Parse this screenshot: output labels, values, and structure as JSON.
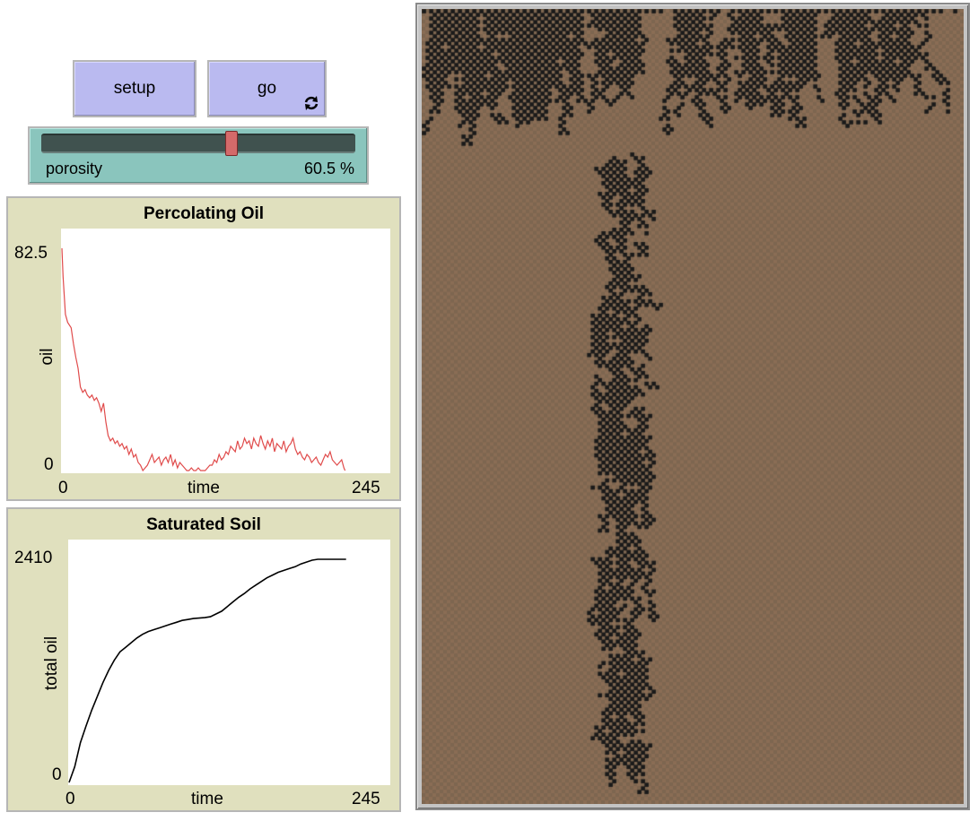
{
  "buttons": {
    "setup": {
      "label": "setup"
    },
    "go": {
      "label": "go",
      "forever": true
    }
  },
  "slider": {
    "label": "porosity",
    "value": 60.5,
    "value_text": "60.5 %",
    "min": 0,
    "max": 100
  },
  "plots": [
    {
      "title": "Percolating Oil",
      "ylabel": "oil",
      "xlabel": "time",
      "chart_data": {
        "type": "line",
        "title": "Percolating Oil",
        "xlabel": "time",
        "ylabel": "oil",
        "xlim": [
          0,
          245
        ],
        "ylim": [
          0,
          82.5
        ],
        "x_tick_labels": [
          "0",
          "245"
        ],
        "y_tick_labels": [
          "0",
          "82.5"
        ],
        "series": [
          {
            "color": "#e04b4b",
            "x": [
              0,
              1,
              3,
              5,
              8,
              10,
              12,
              14,
              16,
              18,
              20,
              22,
              24,
              26,
              28,
              30,
              32,
              34,
              36,
              38,
              40,
              42,
              44,
              46,
              48,
              50,
              52,
              54,
              56,
              58,
              60,
              62,
              64,
              66,
              68,
              70,
              72,
              74,
              76,
              78,
              80,
              82,
              84,
              86,
              88,
              90,
              92,
              94,
              96,
              98,
              100,
              102,
              104,
              106,
              108,
              110,
              112,
              114,
              116,
              118,
              120,
              122,
              124,
              126,
              128,
              130,
              132,
              134,
              136,
              138,
              140,
              142,
              144,
              146,
              148,
              150,
              152,
              154,
              156,
              158,
              160,
              162,
              164,
              166,
              168,
              170,
              172,
              174,
              176,
              178,
              180,
              182,
              184,
              186,
              188,
              190,
              192,
              194,
              196,
              198,
              200,
              202,
              204,
              206,
              208,
              210,
              212,
              214,
              216,
              218,
              220,
              222,
              224,
              226,
              228,
              230,
              232,
              234,
              236,
              238,
              240,
              242,
              244,
              245
            ],
            "y": [
              82.5,
              72,
              58,
              55,
              53,
              47,
              42,
              38,
              31,
              29,
              30,
              28,
              27,
              28,
              26,
              27,
              25,
              22,
              25,
              18,
              13,
              11,
              12,
              10,
              11,
              9,
              10,
              8,
              9,
              6,
              8,
              5,
              6,
              3,
              2,
              0,
              1,
              2,
              4,
              6,
              3,
              4,
              5,
              2,
              4,
              5,
              3,
              6,
              2,
              4,
              1,
              3,
              2,
              1,
              0,
              0,
              1,
              0,
              0,
              1,
              0,
              0,
              0,
              1,
              2,
              2,
              4,
              3,
              6,
              4,
              5,
              7,
              6,
              9,
              8,
              7,
              11,
              8,
              9,
              12,
              10,
              11,
              8,
              12,
              10,
              9,
              13,
              10,
              8,
              11,
              9,
              12,
              7,
              10,
              9,
              8,
              11,
              7,
              9,
              10,
              12,
              8,
              6,
              7,
              5,
              4,
              6,
              5,
              3,
              4,
              5,
              3,
              2,
              4,
              6,
              5,
              7,
              4,
              3,
              2,
              3,
              4,
              1,
              0
            ]
          }
        ]
      }
    },
    {
      "title": "Saturated Soil",
      "ylabel": "total oil",
      "xlabel": "time",
      "chart_data": {
        "type": "line",
        "title": "Saturated Soil",
        "xlabel": "time",
        "ylabel": "total oil",
        "xlim": [
          0,
          245
        ],
        "ylim": [
          0,
          2410
        ],
        "x_tick_labels": [
          "0",
          "245"
        ],
        "y_tick_labels": [
          "0",
          "2410"
        ],
        "series": [
          {
            "color": "#000000",
            "x": [
              0,
              5,
              10,
              15,
              20,
              25,
              30,
              35,
              40,
              45,
              50,
              55,
              60,
              65,
              70,
              75,
              80,
              85,
              90,
              95,
              100,
              105,
              110,
              115,
              120,
              125,
              130,
              135,
              140,
              145,
              150,
              155,
              160,
              165,
              170,
              175,
              180,
              185,
              190,
              195,
              200,
              205,
              210,
              215,
              220,
              225,
              230,
              235,
              240,
              245
            ],
            "y": [
              0,
              170,
              430,
              610,
              780,
              930,
              1080,
              1210,
              1320,
              1410,
              1460,
              1510,
              1560,
              1600,
              1630,
              1650,
              1670,
              1690,
              1710,
              1730,
              1750,
              1760,
              1770,
              1775,
              1780,
              1790,
              1820,
              1850,
              1900,
              1950,
              2000,
              2040,
              2090,
              2130,
              2170,
              2210,
              2240,
              2270,
              2290,
              2310,
              2330,
              2360,
              2380,
              2400,
              2420,
              2430,
              2440,
              2450,
              2460,
              2460
            ]
          }
        ]
      }
    }
  ],
  "world": {
    "soil_color": "#7d6650",
    "pore_color": "#8a6d55",
    "oil_color": "#1a1a1a",
    "grid_cols": 151,
    "grid_rows": 222
  }
}
